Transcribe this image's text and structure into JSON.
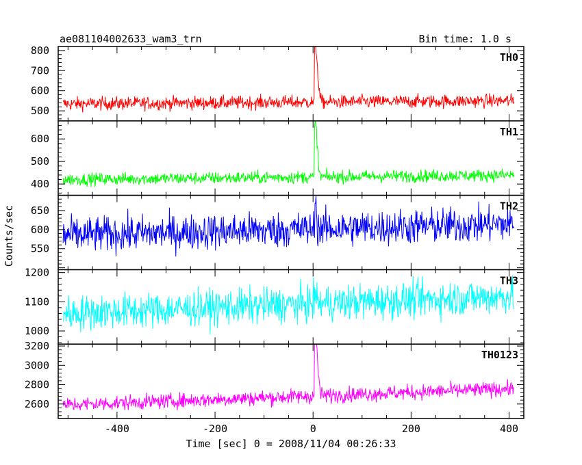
{
  "header": {
    "title": "ae081104002633_wam3_trn",
    "bin_time": "Bin time: 1.0 s"
  },
  "axes": {
    "ylabel": "Counts/sec",
    "xlabel": "Time [sec] 0 = 2008/11/04 00:26:33"
  },
  "chart_data": {
    "type": "line",
    "xlim": [
      -520,
      430
    ],
    "x_ticks": [
      -400,
      -200,
      0,
      200,
      400
    ],
    "x_range": [
      -510,
      410
    ],
    "panels": [
      {
        "name": "TH0",
        "color": "#ff0000",
        "ylim": [
          450,
          820
        ],
        "yticks": [
          500,
          600,
          700,
          800
        ],
        "baseline_start": 535,
        "baseline_end": 550,
        "noise": 30,
        "peak": 810,
        "peak_x": 5,
        "peak_width": 6
      },
      {
        "name": "TH1",
        "color": "#00ff00",
        "ylim": [
          350,
          680
        ],
        "yticks": [
          400,
          500,
          600
        ],
        "baseline_start": 420,
        "baseline_end": 440,
        "noise": 25,
        "peak": 660,
        "peak_x": 5,
        "peak_width": 5
      },
      {
        "name": "TH2",
        "color": "#0000ff",
        "ylim": [
          495,
          690
        ],
        "yticks": [
          550,
          600,
          650
        ],
        "baseline_start": 585,
        "baseline_end": 615,
        "noise": 42,
        "peak": 680,
        "peak_x": 5,
        "peak_width": 2
      },
      {
        "name": "TH3",
        "color": "#00ffff",
        "ylim": [
          955,
          1210
        ],
        "yticks": [
          1000,
          1100,
          1200
        ],
        "baseline_start": 1060,
        "baseline_end": 1120,
        "noise": 55,
        "peak": 1120,
        "peak_x": 5,
        "peak_width": 2
      },
      {
        "name": "TH0123",
        "color": "#ff00ff",
        "ylim": [
          2450,
          3220
        ],
        "yticks": [
          2600,
          2800,
          3000,
          3200
        ],
        "baseline_start": 2590,
        "baseline_end": 2760,
        "noise": 70,
        "peak": 3200,
        "peak_x": 5,
        "peak_width": 6
      }
    ]
  }
}
